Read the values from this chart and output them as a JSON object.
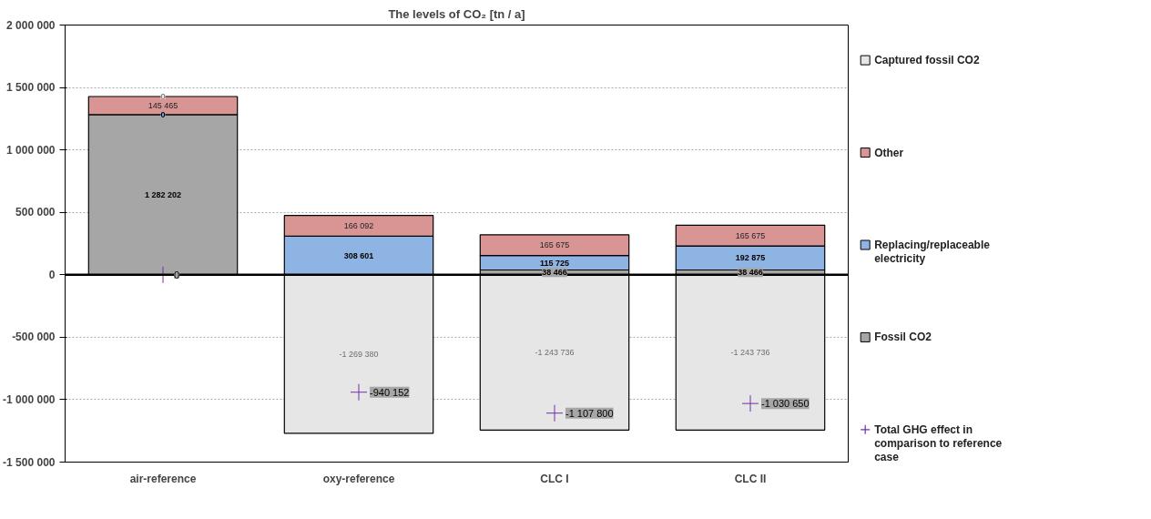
{
  "chart_data": {
    "type": "bar",
    "title": "The levels of CO₂ [tn / a]",
    "categories": [
      "air-reference",
      "oxy-reference",
      "CLC I",
      "CLC II"
    ],
    "stacked": true,
    "series": [
      {
        "name": "Fossil CO2",
        "color": "#a6a6a6",
        "values": [
          1282202,
          null,
          38466,
          38466
        ],
        "value_labels": [
          "1 282 202",
          null,
          "38 466",
          "38 466"
        ]
      },
      {
        "name": "Replacing/replaceable electricity",
        "color": "#8eb4e3",
        "values": [
          0,
          308601,
          115725,
          192875
        ],
        "value_labels": [
          "0",
          "308 601",
          "115 725",
          "192 875"
        ]
      },
      {
        "name": "Other",
        "color": "#d99594",
        "values": [
          145465,
          166092,
          165675,
          165675
        ],
        "value_labels": [
          "145 465",
          "166 092",
          "165 675",
          "165 675"
        ]
      },
      {
        "name": "Captured fossil CO2",
        "color": "#e6e6e6",
        "values": [
          0,
          -1269380,
          -1243736,
          -1243736
        ],
        "value_labels": [
          "0",
          "-1 269 380",
          "-1 243 736",
          "-1 243 736"
        ]
      },
      {
        "name": "Total GHG effect in comparison to reference case",
        "type": "scatter",
        "color": "#7030a0",
        "marker": "cross",
        "values": [
          0,
          -940152,
          -1107800,
          -1030650
        ],
        "value_labels": [
          "0",
          "-940 152",
          "-1 107 800",
          "-1 030 650"
        ]
      }
    ],
    "ylim": [
      -1500000,
      2000000
    ],
    "yticks": [
      {
        "value": -1500000,
        "label": "-1 500 000"
      },
      {
        "value": -1000000,
        "label": "-1 000 000"
      },
      {
        "value": -500000,
        "label": "-500 000"
      },
      0,
      {
        "value": 500000,
        "label": "500 000"
      },
      {
        "value": 1000000,
        "label": "1 000 000"
      },
      {
        "value": 1500000,
        "label": "1 500 000"
      },
      {
        "value": 2000000,
        "label": "2 000 000"
      }
    ],
    "grid": "y",
    "legend": "right",
    "ref_lines": [
      {
        "axis": "y",
        "value": 0,
        "color": "#000000"
      }
    ]
  }
}
